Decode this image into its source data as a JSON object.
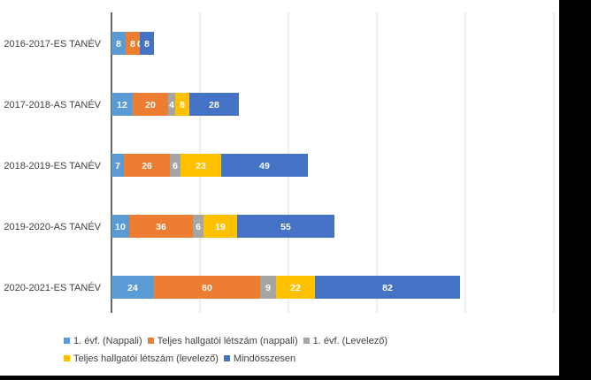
{
  "chart_data": {
    "type": "bar",
    "orientation": "horizontal",
    "stacked": true,
    "categories": [
      "2016-2017-ES TANÉV",
      "2017-2018-AS TANÉV",
      "2018-2019-ES TANÉV",
      "2019-2020-AS TANÉV",
      "2020-2021-ES TANÉV"
    ],
    "series": [
      {
        "name": "1. évf. (Nappali)",
        "color": "#5b9bd5",
        "values": [
          8,
          12,
          7,
          10,
          24
        ]
      },
      {
        "name": "Teljes hallgatói létszám (nappali)",
        "color": "#ed7d31",
        "values": [
          8,
          20,
          26,
          36,
          60
        ]
      },
      {
        "name": "1. évf. (Levelező)",
        "color": "#a5a5a5",
        "values": [
          0,
          4,
          6,
          6,
          9
        ]
      },
      {
        "name": "Teljes hallgatói létszám (levelező)",
        "color": "#ffc000",
        "values": [
          0,
          8,
          23,
          19,
          22
        ]
      },
      {
        "name": "Mindösszesen",
        "color": "#4472c4",
        "values": [
          8,
          28,
          49,
          55,
          82
        ]
      }
    ],
    "xlim": [
      0,
      260
    ],
    "grid": true,
    "legend_position": "bottom",
    "data_labels": true,
    "label_color": "#ffffff",
    "axis_label_color": "#404040",
    "grid_color": "#d9d9d9",
    "background": "#ffffff"
  }
}
